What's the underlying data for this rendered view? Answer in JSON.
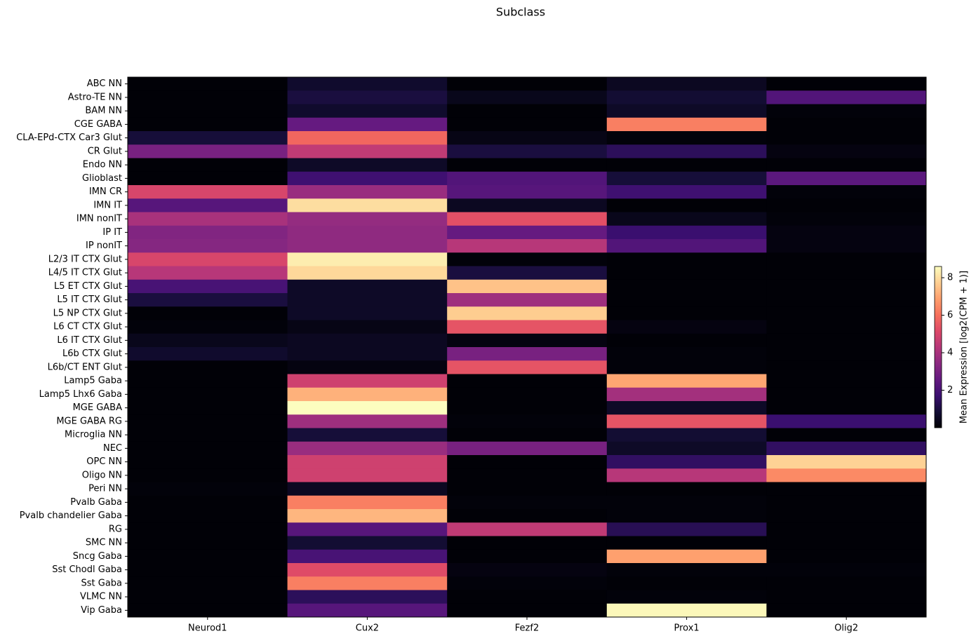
{
  "chart_data": {
    "type": "heatmap",
    "title": "Subclass",
    "columns": [
      "Neurod1",
      "Cux2",
      "Fezf2",
      "Prox1",
      "Olig2"
    ],
    "rows": [
      "ABC NN",
      "Astro-TE NN",
      "BAM NN",
      "CGE GABA",
      "CLA-EPd-CTX Car3 Glut",
      "CR Glut",
      "Endo NN",
      "Glioblast",
      "IMN CR",
      "IMN IT",
      "IMN nonIT",
      "IP IT",
      "IP nonIT",
      "L2/3 IT CTX Glut",
      "L4/5 IT CTX Glut",
      "L5 ET CTX Glut",
      "L5 IT CTX Glut",
      "L5 NP CTX Glut",
      "L6 CT CTX Glut",
      "L6 IT CTX Glut",
      "L6b CTX Glut",
      "L6b/CT ENT Glut",
      "Lamp5 Gaba",
      "Lamp5 Lhx6 Gaba",
      "MGE GABA",
      "MGE GABA RG",
      "Microglia NN",
      "NEC",
      "OPC NN",
      "Oligo NN",
      "Peri NN",
      "Pvalb Gaba",
      "Pvalb chandelier Gaba",
      "RG",
      "SMC NN",
      "Sncg Gaba",
      "Sst Chodl Gaba",
      "Sst Gaba",
      "VLMC NN",
      "Vip Gaba"
    ],
    "values": [
      [
        0.05,
        0.7,
        0.05,
        0.5,
        0.05
      ],
      [
        0.05,
        1.0,
        0.4,
        0.8,
        2.2
      ],
      [
        0.05,
        0.7,
        0.05,
        0.6,
        0.1
      ],
      [
        0.05,
        2.6,
        0.05,
        6.3,
        0.05
      ],
      [
        0.9,
        5.8,
        0.3,
        0.1,
        0.05
      ],
      [
        3.0,
        4.5,
        1.0,
        1.4,
        0.2
      ],
      [
        0.05,
        0.6,
        0.05,
        0.05,
        0.05
      ],
      [
        0.05,
        1.8,
        2.2,
        0.9,
        2.4
      ],
      [
        5.0,
        3.7,
        2.3,
        1.8,
        0.1
      ],
      [
        2.3,
        8.0,
        0.5,
        0.05,
        0.05
      ],
      [
        4.0,
        3.6,
        5.3,
        0.4,
        0.1
      ],
      [
        3.2,
        3.5,
        2.6,
        1.7,
        0.2
      ],
      [
        3.3,
        3.5,
        4.3,
        2.2,
        0.2
      ],
      [
        5.0,
        8.3,
        0.1,
        0.05,
        0.05
      ],
      [
        4.3,
        7.9,
        1.0,
        0.05,
        0.05
      ],
      [
        2.0,
        0.6,
        7.5,
        0.05,
        0.05
      ],
      [
        1.0,
        0.6,
        3.8,
        0.05,
        0.05
      ],
      [
        0.05,
        0.6,
        7.7,
        0.05,
        0.05
      ],
      [
        0.1,
        0.3,
        5.4,
        0.2,
        0.05
      ],
      [
        0.4,
        0.5,
        0.2,
        0.05,
        0.05
      ],
      [
        0.7,
        0.5,
        3.0,
        0.1,
        0.05
      ],
      [
        0.05,
        0.2,
        5.4,
        0.1,
        0.05
      ],
      [
        0.05,
        4.8,
        0.05,
        7.0,
        0.05
      ],
      [
        0.05,
        7.2,
        0.05,
        3.9,
        0.05
      ],
      [
        0.05,
        8.6,
        0.05,
        0.6,
        0.05
      ],
      [
        0.05,
        3.8,
        0.1,
        5.4,
        1.7
      ],
      [
        0.05,
        0.9,
        0.05,
        0.8,
        0.05
      ],
      [
        0.05,
        3.7,
        3.0,
        0.6,
        1.5
      ],
      [
        0.05,
        4.8,
        0.05,
        1.5,
        7.8
      ],
      [
        0.05,
        4.8,
        0.05,
        4.3,
        6.5
      ],
      [
        0.1,
        0.5,
        0.05,
        0.05,
        0.05
      ],
      [
        0.05,
        6.3,
        0.1,
        0.1,
        0.05
      ],
      [
        0.05,
        7.3,
        0.05,
        0.1,
        0.05
      ],
      [
        0.05,
        2.3,
        4.5,
        1.3,
        0.05
      ],
      [
        0.05,
        0.8,
        0.05,
        0.05,
        0.05
      ],
      [
        0.05,
        2.0,
        0.05,
        6.9,
        0.05
      ],
      [
        0.05,
        5.2,
        0.2,
        0.1,
        0.1
      ],
      [
        0.05,
        6.3,
        0.1,
        0.05,
        0.05
      ],
      [
        0.05,
        1.4,
        0.05,
        0.1,
        0.05
      ],
      [
        0.05,
        2.3,
        0.05,
        8.5,
        0.05
      ]
    ],
    "colormap": "magma",
    "clim": [
      0,
      8.6
    ],
    "colorbar": {
      "label": "Mean Expression [log2(CPM + 1)]",
      "ticks": [
        2,
        4,
        6,
        8
      ]
    }
  }
}
